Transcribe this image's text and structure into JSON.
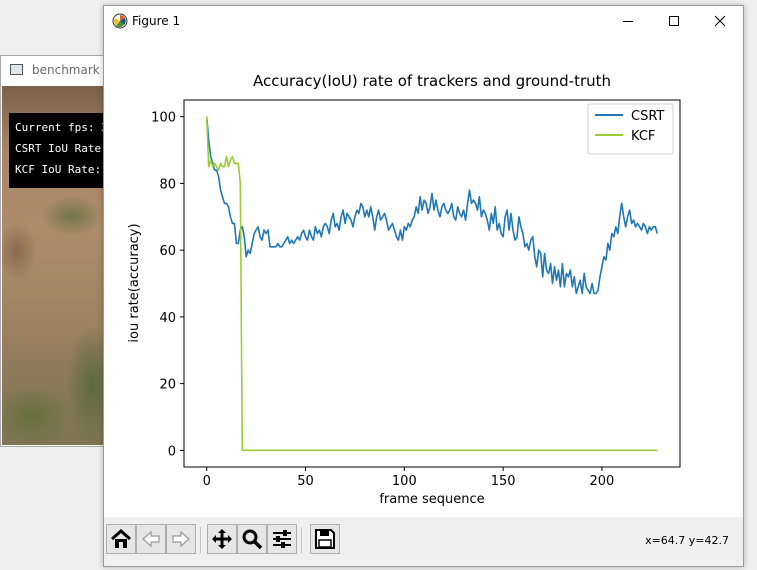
{
  "background_window": {
    "title": "benchmark",
    "overlay_lines": [
      "Current fps: 3",
      "CSRT IoU Rate",
      "KCF IoU Rate:"
    ]
  },
  "window": {
    "title": "Figure 1",
    "controls": {
      "minimize": "minimize-icon",
      "maximize": "maximize-icon",
      "close": "close-icon"
    }
  },
  "toolbar": {
    "buttons": [
      "home-icon",
      "back-arrow-icon",
      "forward-arrow-icon",
      "pan-icon",
      "zoom-icon",
      "configure-subplots-icon",
      "save-icon"
    ],
    "coords": "x=64.7 y=42.7"
  },
  "chart_data": {
    "type": "line",
    "title": "Accuracy(IoU) rate of trackers and ground-truth",
    "xlabel": "frame sequence",
    "ylabel": "iou rate(accuracy)",
    "xlim": [
      -11.5,
      239.5
    ],
    "ylim": [
      -5,
      105
    ],
    "xticks": [
      0,
      50,
      100,
      150,
      200
    ],
    "yticks": [
      0,
      20,
      40,
      60,
      80,
      100
    ],
    "legend_position": "top-right",
    "grid": false,
    "series": [
      {
        "name": "CSRT",
        "color": "#1f77b4",
        "x": [
          0,
          1,
          2,
          3,
          4,
          5,
          6,
          7,
          8,
          9,
          10,
          11,
          12,
          13,
          14,
          15,
          16,
          17,
          18,
          19,
          20,
          21,
          22,
          23,
          24,
          25,
          26,
          27,
          28,
          29,
          30,
          31,
          32,
          33,
          34,
          35,
          36,
          37,
          38,
          39,
          40,
          41,
          42,
          43,
          44,
          45,
          46,
          47,
          48,
          49,
          50,
          51,
          52,
          53,
          54,
          55,
          56,
          57,
          58,
          59,
          60,
          61,
          62,
          63,
          64,
          65,
          66,
          67,
          68,
          69,
          70,
          71,
          72,
          73,
          74,
          75,
          76,
          77,
          78,
          79,
          80,
          81,
          82,
          83,
          84,
          85,
          86,
          87,
          88,
          89,
          90,
          91,
          92,
          93,
          94,
          95,
          96,
          97,
          98,
          99,
          100,
          101,
          102,
          103,
          104,
          105,
          106,
          107,
          108,
          109,
          110,
          111,
          112,
          113,
          114,
          115,
          116,
          117,
          118,
          119,
          120,
          121,
          122,
          123,
          124,
          125,
          126,
          127,
          128,
          129,
          130,
          131,
          132,
          133,
          134,
          135,
          136,
          137,
          138,
          139,
          140,
          141,
          142,
          143,
          144,
          145,
          146,
          147,
          148,
          149,
          150,
          151,
          152,
          153,
          154,
          155,
          156,
          157,
          158,
          159,
          160,
          161,
          162,
          163,
          164,
          165,
          166,
          167,
          168,
          169,
          170,
          171,
          172,
          173,
          174,
          175,
          176,
          177,
          178,
          179,
          180,
          181,
          182,
          183,
          184,
          185,
          186,
          187,
          188,
          189,
          190,
          191,
          192,
          193,
          194,
          195,
          196,
          197,
          198,
          199,
          200,
          201,
          202,
          203,
          204,
          205,
          206,
          207,
          208,
          209,
          210,
          211,
          212,
          213,
          214,
          215,
          216,
          217,
          218,
          219,
          220,
          221,
          222,
          223,
          224,
          225,
          226,
          227,
          228
        ],
        "y": [
          100,
          93,
          88,
          86,
          84,
          84,
          82,
          78,
          76,
          74,
          74,
          73,
          70,
          68,
          68,
          62,
          62,
          66,
          67,
          64,
          58,
          60,
          59,
          62,
          65,
          66,
          67,
          64,
          63,
          66,
          65,
          66,
          61,
          61,
          61,
          61,
          62,
          61,
          61,
          62,
          63,
          64,
          62,
          63,
          62,
          63,
          64,
          63,
          65,
          66,
          64,
          63,
          66,
          64,
          63,
          67,
          65,
          66,
          64,
          67,
          68,
          67,
          65,
          69,
          71,
          67,
          68,
          66,
          70,
          72,
          68,
          71,
          70,
          69,
          67,
          70,
          72,
          71,
          74,
          73,
          70,
          72,
          70,
          73,
          70,
          66,
          70,
          72,
          69,
          70,
          71,
          69,
          66,
          67,
          68,
          66,
          64,
          63,
          66,
          63,
          67,
          66,
          68,
          67,
          69,
          70,
          73,
          71,
          76,
          72,
          75,
          74,
          71,
          73,
          77,
          72,
          75,
          72,
          70,
          73,
          74,
          72,
          71,
          72,
          74,
          70,
          69,
          73,
          71,
          70,
          72,
          69,
          74,
          78,
          74,
          75,
          74,
          72,
          76,
          70,
          72,
          71,
          69,
          66,
          71,
          68,
          73,
          66,
          68,
          65,
          64,
          70,
          72,
          66,
          71,
          66,
          63,
          64,
          70,
          67,
          65,
          61,
          62,
          60,
          63,
          64,
          58,
          55,
          60,
          59,
          52,
          59,
          54,
          53,
          56,
          50,
          55,
          51,
          54,
          49,
          56,
          49,
          53,
          52,
          54,
          49,
          52,
          47,
          49,
          51,
          47,
          53,
          49,
          48,
          47,
          50,
          47,
          47,
          48,
          52,
          55,
          58,
          57,
          62,
          60,
          65,
          64,
          67,
          65,
          70,
          74,
          70,
          67,
          70,
          72,
          68,
          69,
          67,
          68,
          67,
          66,
          68,
          67,
          65,
          67,
          66,
          67,
          67,
          65
        ]
      },
      {
        "name": "KCF",
        "color": "#9acd32",
        "x": [
          0,
          1,
          2,
          3,
          4,
          5,
          6,
          7,
          8,
          9,
          10,
          11,
          12,
          13,
          14,
          15,
          16,
          17,
          18,
          19,
          228
        ],
        "y": [
          100,
          85,
          87,
          85,
          86,
          85,
          84,
          86,
          85,
          85,
          88,
          85,
          87,
          88,
          86,
          86,
          86,
          80,
          0,
          0,
          0
        ]
      }
    ]
  }
}
